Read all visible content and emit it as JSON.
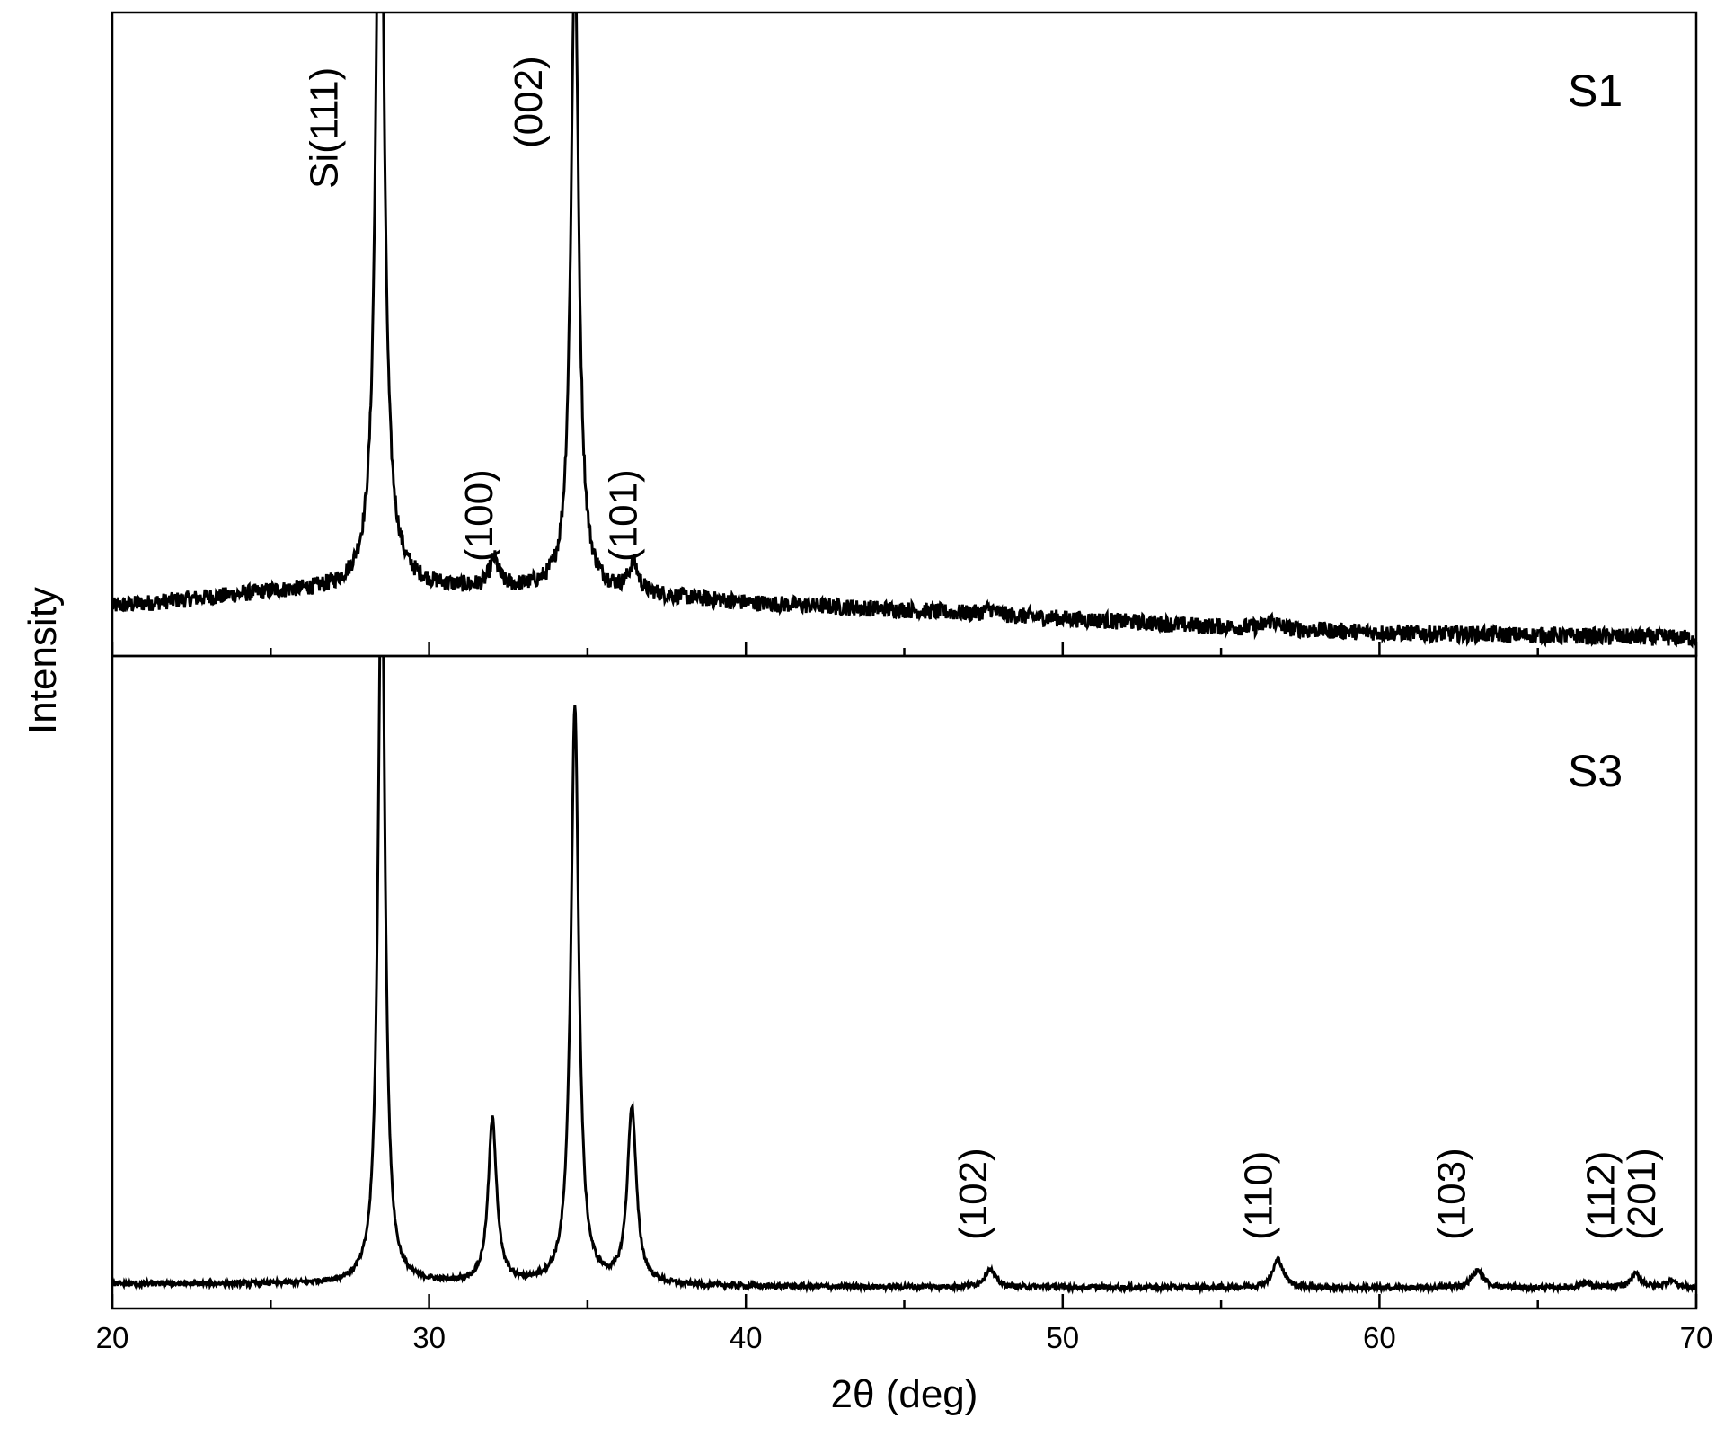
{
  "chart_data": {
    "type": "line",
    "xlabel": "2θ (deg)",
    "ylabel": "Intensity",
    "xlim": [
      20,
      70
    ],
    "x_ticks": [
      "20",
      "30",
      "40",
      "50",
      "60",
      "70"
    ],
    "x_minor_step": 5,
    "y_ticks_shown": false,
    "grid": false,
    "panels": [
      {
        "id": "S1",
        "label": "S1",
        "ylim": [
          0,
          1
        ],
        "baseline": {
          "x": [
            20,
            25,
            30,
            35,
            40,
            45,
            50,
            55,
            60,
            65,
            70
          ],
          "y": [
            0.065,
            0.085,
            0.09,
            0.088,
            0.07,
            0.06,
            0.048,
            0.036,
            0.028,
            0.024,
            0.02
          ]
        },
        "peaks": [
          {
            "x": 28.45,
            "height": 1.25,
            "width": 0.14
          },
          {
            "x": 28.55,
            "height": 0.05,
            "width": 0.5
          },
          {
            "x": 32.05,
            "height": 0.04,
            "width": 0.17
          },
          {
            "x": 34.6,
            "height": 0.91,
            "width": 0.15
          },
          {
            "x": 36.45,
            "height": 0.04,
            "width": 0.18
          },
          {
            "x": 47.7,
            "height": 0.008,
            "width": 0.2
          },
          {
            "x": 56.6,
            "height": 0.012,
            "width": 0.22
          }
        ],
        "annotations": [
          {
            "text": "Si(111)",
            "x": 27.1
          },
          {
            "text": "(002)",
            "x": 33.55
          },
          {
            "text": "(100)",
            "x": 32.0
          },
          {
            "text": "(101)",
            "x": 36.55
          }
        ]
      },
      {
        "id": "S3",
        "label": "S3",
        "ylim": [
          0,
          1
        ],
        "baseline": {
          "x": [
            20,
            30,
            40,
            50,
            60,
            70
          ],
          "y": [
            0.02,
            0.02,
            0.016,
            0.015,
            0.014,
            0.014
          ]
        },
        "peaks": [
          {
            "x": 28.5,
            "height": 1.2,
            "width": 0.13
          },
          {
            "x": 32.0,
            "height": 0.26,
            "width": 0.16
          },
          {
            "x": 34.6,
            "height": 0.92,
            "width": 0.15
          },
          {
            "x": 36.4,
            "height": 0.28,
            "width": 0.17
          },
          {
            "x": 47.7,
            "height": 0.028,
            "width": 0.2
          },
          {
            "x": 56.8,
            "height": 0.045,
            "width": 0.2
          },
          {
            "x": 63.1,
            "height": 0.028,
            "width": 0.22
          },
          {
            "x": 66.5,
            "height": 0.008,
            "width": 0.2
          },
          {
            "x": 68.1,
            "height": 0.022,
            "width": 0.2
          },
          {
            "x": 69.2,
            "height": 0.012,
            "width": 0.2
          }
        ],
        "annotations": [
          {
            "text": "(102)",
            "x": 47.6
          },
          {
            "text": "(110)",
            "x": 56.6
          },
          {
            "text": "(103)",
            "x": 62.7
          },
          {
            "text": "(112)",
            "x": 67.4
          },
          {
            "text": "(201)",
            "x": 68.7
          }
        ]
      }
    ]
  }
}
